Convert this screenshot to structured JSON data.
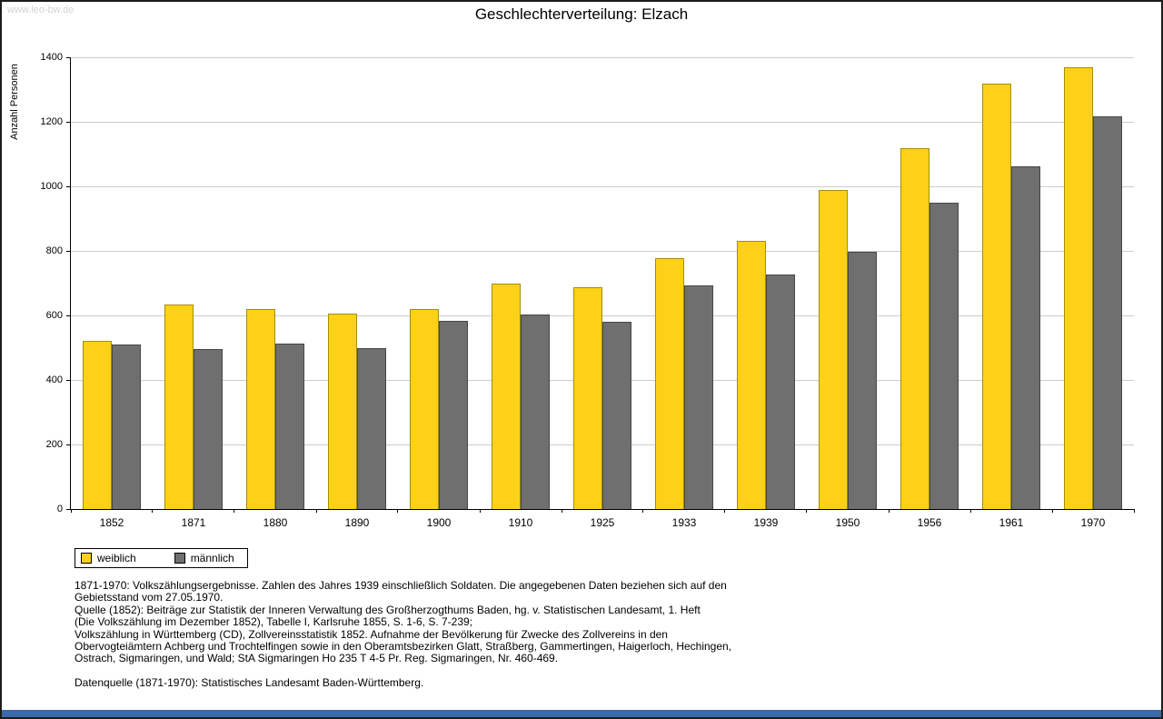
{
  "page": {
    "watermark": "www.leo-bw.de"
  },
  "chart_data": {
    "type": "bar",
    "title": "Geschlechterverteilung: Elzach",
    "xlabel": "",
    "ylabel": "Anzahl Personen",
    "ylim": [
      0,
      1400
    ],
    "yticks": [
      0,
      200,
      400,
      600,
      800,
      1000,
      1200,
      1400
    ],
    "grid": true,
    "legend_position": "bottom-left",
    "categories": [
      "1852",
      "1871",
      "1880",
      "1890",
      "1900",
      "1910",
      "1925",
      "1933",
      "1939",
      "1950",
      "1956",
      "1961",
      "1970"
    ],
    "series": [
      {
        "name": "weiblich",
        "key": "weiblich",
        "color": "#FCD116",
        "border_color": "#a38e0c",
        "values": [
          520,
          635,
          620,
          607,
          620,
          700,
          688,
          778,
          831,
          988,
          1117,
          1318,
          1370
        ]
      },
      {
        "name": "männlich",
        "key": "maennlich",
        "color": "#6F6F6F",
        "border_color": "#464646",
        "values": [
          510,
          497,
          512,
          500,
          582,
          604,
          579,
          694,
          726,
          796,
          948,
          1063,
          1216
        ]
      }
    ]
  },
  "footnotes": [
    "1871-1970: Volkszählungsergebnisse. Zahlen des Jahres 1939 einschließlich Soldaten. Die angegebenen Daten beziehen sich auf den",
    "Gebietsstand vom 27.05.1970.",
    "Quelle (1852): Beiträge zur Statistik der Inneren Verwaltung des Großherzogthums Baden, hg. v. Statistischen Landesamt, 1. Heft",
    "(Die Volkszählung im Dezember 1852), Tabelle I, Karlsruhe 1855, S. 1-6, S. 7-239;",
    "Volkszählung in Württemberg (CD), Zollvereinsstatistik 1852. Aufnahme der Bevölkerung für Zwecke des Zollvereins in den",
    "Obervogteiämtern Achberg und Trochtelfingen sowie in den Oberamtsbezirken Glatt, Straßberg, Gammertingen, Haigerloch, Hechingen,",
    "Ostrach, Sigmaringen, und Wald; StA Sigmaringen Ho 235 T 4-5 Pr. Reg. Sigmaringen, Nr. 460-469.",
    "Datenquelle (1871-1970): Statistisches Landesamt Baden-Württemberg."
  ],
  "colors": {
    "grid": "#cccccc",
    "axis": "#000000",
    "footer_bar": "#3a6aa9",
    "watermark": "#d4d4d4"
  }
}
